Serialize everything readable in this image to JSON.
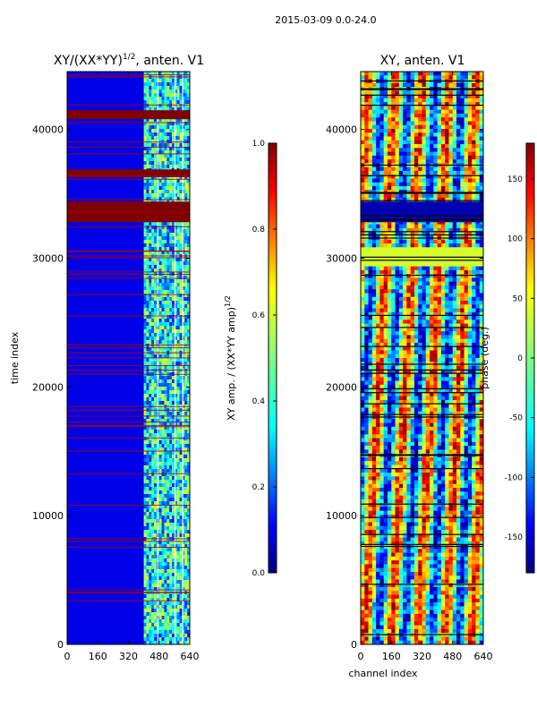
{
  "figure": {
    "suptitle": "2015-03-09 0.0-24.0"
  },
  "chart_data": [
    {
      "type": "heatmap",
      "title_main": "XY/(XX*YY)",
      "title_sup": "1/2",
      "title_tail": ", anten. V1",
      "xlabel": "",
      "ylabel": "time index",
      "xlim": [
        0,
        640
      ],
      "ylim": [
        0,
        44500
      ],
      "xticks": [
        0,
        160,
        320,
        480,
        640
      ],
      "yticks": [
        0,
        10000,
        20000,
        30000,
        40000
      ],
      "colorbar": {
        "label": "XY amp. / (XX*YY amp)",
        "label_sup": "1/2",
        "range": [
          0.0,
          1.0
        ],
        "ticks": [
          0.0,
          0.2,
          0.4,
          0.6,
          0.8,
          1.0
        ],
        "tick_labels": [
          "0.0",
          "0.2",
          "0.4",
          "0.6",
          "0.8",
          "1.0"
        ],
        "colormap": "jet"
      },
      "description_values": {
        "background_level": 0.1,
        "active_channel_range": [
          400,
          640
        ],
        "saturated_time_ranges": [
          [
            32800,
            34400
          ],
          [
            36300,
            36900
          ],
          [
            40800,
            41500
          ]
        ]
      }
    },
    {
      "type": "heatmap",
      "title": "XY, anten. V1",
      "xlabel": "channel index",
      "ylabel": "",
      "xlim": [
        0,
        640
      ],
      "ylim": [
        0,
        44500
      ],
      "xticks": [
        0,
        160,
        320,
        480,
        640
      ],
      "yticks": [
        0,
        10000,
        20000,
        30000,
        40000
      ],
      "colorbar": {
        "label": "phase (deg.)",
        "range": [
          -180,
          180
        ],
        "ticks": [
          -150,
          -100,
          -50,
          0,
          50,
          100,
          150
        ],
        "tick_labels": [
          "-150",
          "-100",
          "-50",
          "0",
          "50",
          "100",
          "150"
        ],
        "colormap": "jet"
      },
      "description_values": {
        "flat_phase_time_range": [
          29500,
          31000
        ],
        "flat_phase_value": 30,
        "saturated_time_ranges": [
          [
            32800,
            34400
          ]
        ]
      }
    }
  ],
  "colors": {
    "jet": [
      "#00007f",
      "#0000ff",
      "#007fff",
      "#00ffff",
      "#7fff7f",
      "#ffff00",
      "#ff7f00",
      "#ff0000",
      "#7f0000"
    ]
  }
}
